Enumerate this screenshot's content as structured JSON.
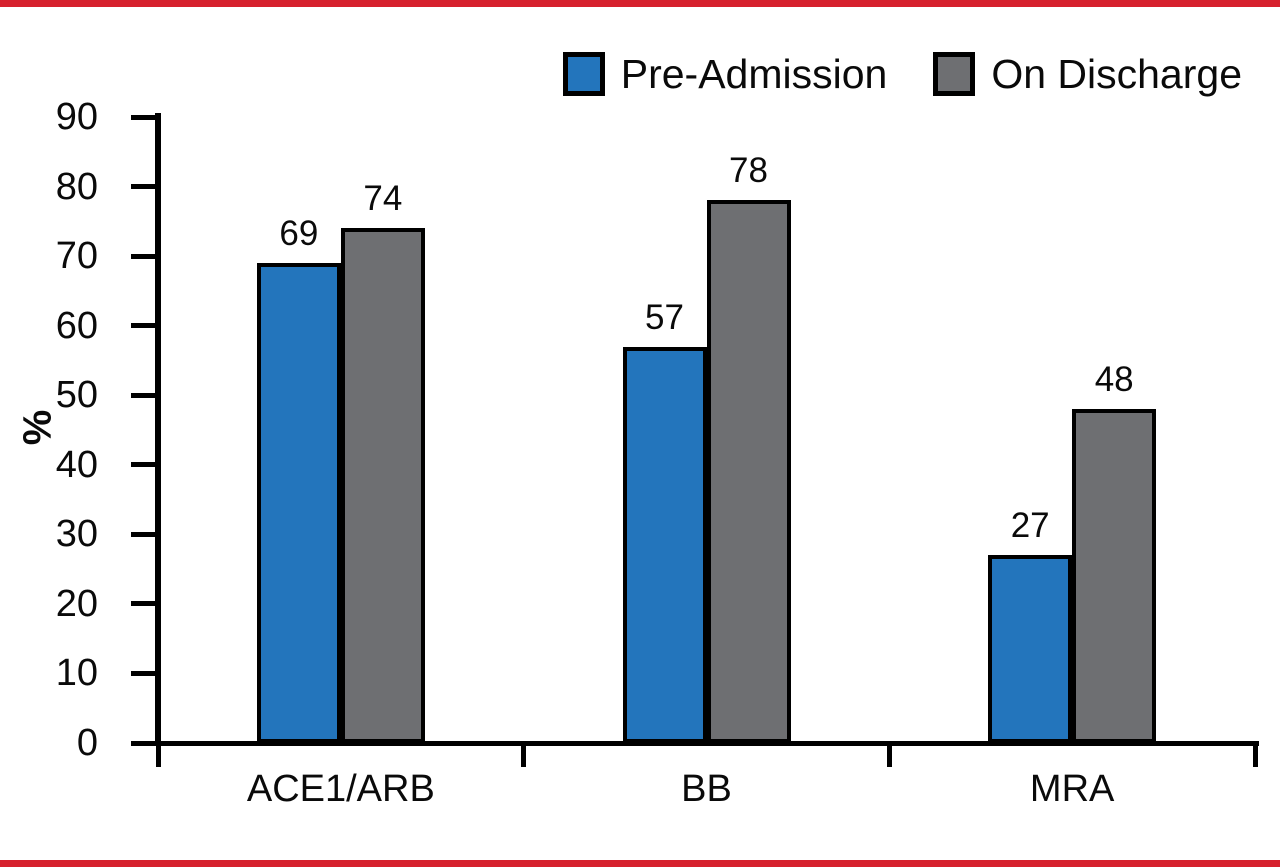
{
  "page": {
    "border_color": "#d6212e",
    "background": "#ffffff",
    "axis_color": "#000000"
  },
  "chart_data": {
    "type": "bar",
    "categories": [
      "ACE1/ARB",
      "BB",
      "MRA"
    ],
    "series": [
      {
        "name": "Pre-Admission",
        "color": "#2375bc",
        "values": [
          69,
          57,
          27
        ]
      },
      {
        "name": "On Discharge",
        "color": "#6e6f72",
        "values": [
          74,
          78,
          48
        ]
      }
    ],
    "title": "",
    "xlabel": "",
    "ylabel": "%",
    "ylim": [
      0,
      90
    ],
    "yticks": [
      0,
      10,
      20,
      30,
      40,
      50,
      60,
      70,
      80,
      90
    ],
    "grid": false,
    "legend_position": "top-right",
    "value_labels": true,
    "bar_border_color": "#000000"
  }
}
